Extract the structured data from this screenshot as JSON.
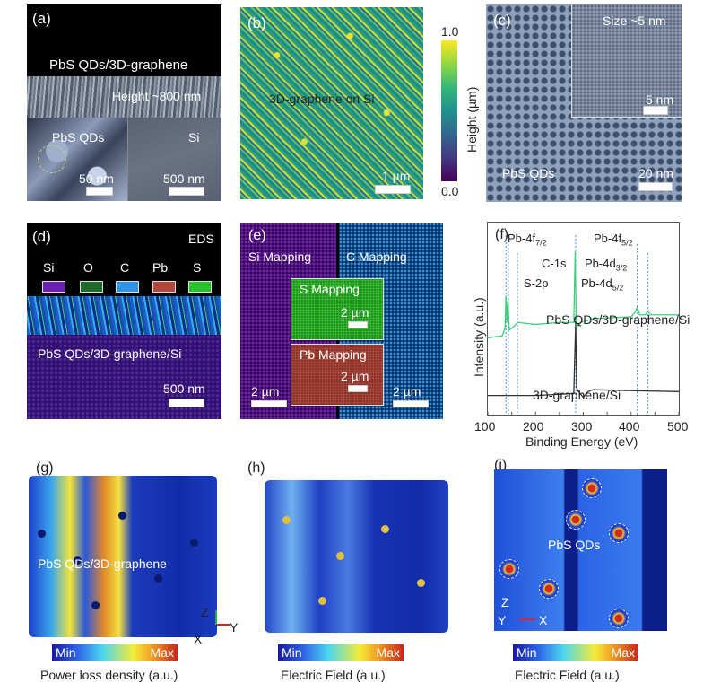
{
  "panels": {
    "a": {
      "label": "(a)",
      "title": "PbS QDs/3D-graphene",
      "height": "Height ~800 nm",
      "inset_label": "PbS QDs",
      "substrate": "Si",
      "inset_scale": "50 nm",
      "scale": "500 nm"
    },
    "b": {
      "label": "(b)",
      "title": "3D-graphene on Si",
      "scale": "1 µm",
      "colorbar_max": "1.0",
      "colorbar_min": "0.0",
      "colorbar_label": "Height (µm)",
      "colorbar_range": [
        0.0,
        1.0
      ]
    },
    "c": {
      "label": "(c)",
      "size": "Size ~5 nm",
      "inset_scale": "5 nm",
      "title": "PbS QDs",
      "scale": "20 nm"
    },
    "d": {
      "label": "(d)",
      "eds": "EDS",
      "legend": [
        {
          "name": "Si",
          "color": "#6a1fb0"
        },
        {
          "name": "O",
          "color": "#1e6b2a"
        },
        {
          "name": "C",
          "color": "#2d93e6"
        },
        {
          "name": "Pb",
          "color": "#b2483c"
        },
        {
          "name": "S",
          "color": "#28c22a"
        }
      ],
      "title": "PbS QDs/3D-graphene/Si",
      "scale": "500 nm"
    },
    "e": {
      "label": "(e)",
      "si": "Si Mapping",
      "c": "C Mapping",
      "s": "S Mapping",
      "pb": "Pb Mapping",
      "scale": "2 µm"
    },
    "g": {
      "label": "(g)",
      "title": "PbS QDs/3D-graphene",
      "axis_z": "Z",
      "axis_y": "Y",
      "axis_x": "X",
      "min": "Min",
      "max": "Max",
      "caption": "Power loss density (a.u.)"
    },
    "h": {
      "label": "(h)",
      "min": "Min",
      "max": "Max",
      "caption": "Electric Field (a.u.)"
    },
    "i": {
      "label": "(i)",
      "title": "PbS QDs",
      "axis_z": "Z",
      "axis_y": "Y",
      "axis_x": "X",
      "min": "Min",
      "max": "Max",
      "caption": "Electric Field (a.u.)"
    }
  },
  "chart_data": {
    "type": "line",
    "panel_label": "(f)",
    "xlabel": "Binding Energy (eV)",
    "ylabel": "Intensity (a.u.)",
    "xlim": [
      100,
      500
    ],
    "xticks": [
      "100",
      "200",
      "300",
      "400",
      "500"
    ],
    "grid": false,
    "series": [
      {
        "name": "PbS QDs/3D-graphene/Si",
        "color": "#3ecf7a",
        "x": [
          100,
          130,
          136,
          138,
          140,
          142,
          145,
          155,
          162,
          200,
          250,
          280,
          283,
          285,
          288,
          295,
          320,
          400,
          408,
          413,
          418,
          430,
          435,
          440,
          500
        ],
        "y": [
          0.4,
          0.41,
          0.45,
          0.62,
          0.48,
          0.6,
          0.44,
          0.46,
          0.48,
          0.47,
          0.48,
          0.48,
          0.85,
          0.5,
          0.46,
          0.48,
          0.5,
          0.51,
          0.53,
          0.56,
          0.52,
          0.52,
          0.54,
          0.52,
          0.52
        ]
      },
      {
        "name": "3D-graphene/Si",
        "color": "#333333",
        "x": [
          100,
          200,
          280,
          284,
          286,
          290,
          300,
          310,
          320,
          400,
          500
        ],
        "y": [
          0.1,
          0.1,
          0.11,
          0.48,
          0.14,
          0.12,
          0.09,
          0.12,
          0.13,
          0.125,
          0.12
        ]
      }
    ],
    "annotations": [
      {
        "text": "Pb-4f",
        "sub": "7/2",
        "x": 138
      },
      {
        "text": "Pb-4f",
        "sub": "5/2",
        "x": 143
      },
      {
        "text": "S-2p",
        "sub": "",
        "x": 162
      },
      {
        "text": "C-1s",
        "sub": "",
        "x": 284
      },
      {
        "text": "Pb-4d",
        "sub": "5/2",
        "x": 413
      },
      {
        "text": "Pb-4d",
        "sub": "3/2",
        "x": 435
      }
    ],
    "series_labels": [
      "PbS QDs/3D-graphene/Si",
      "3D-graphene/Si"
    ]
  }
}
